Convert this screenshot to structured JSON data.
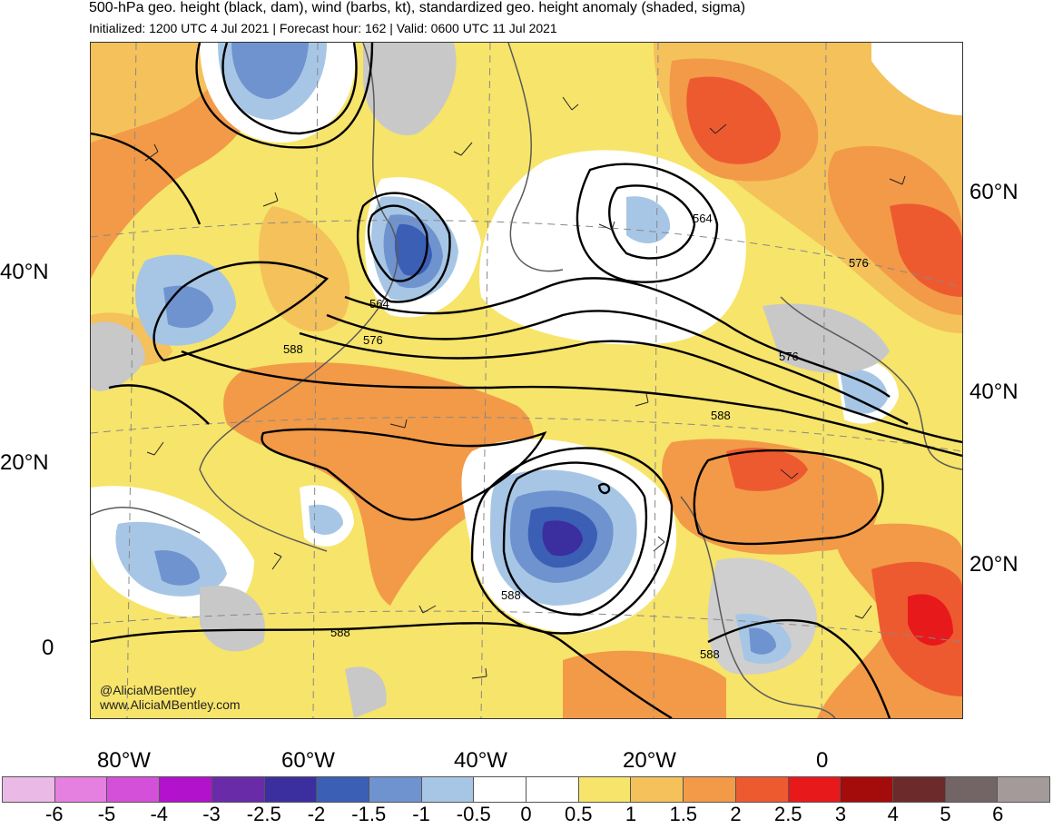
{
  "header": {
    "title": "500-hPa geo. height (black, dam), wind (barbs, kt), standardized geo. height anomaly (shaded, sigma)",
    "subtitle": "Initialized: 1200 UTC 4 Jul 2021 | Forecast hour: 162 | Valid: 0600 UTC 11 Jul 2021"
  },
  "map": {
    "left_lat_labels": [
      "40°N",
      "20°N",
      "0"
    ],
    "right_lat_labels": [
      "60°N",
      "40°N",
      "20°N"
    ],
    "lon_labels": [
      "80°W",
      "60°W",
      "40°W",
      "20°W",
      "0"
    ],
    "contour_labels": [
      "564",
      "576",
      "588",
      "564",
      "576",
      "576",
      "588",
      "588",
      "588",
      "588"
    ],
    "credit_handle": "@AliciaMBentley",
    "credit_site": "www.AliciaMBentley.com"
  },
  "colorbar": {
    "colors": [
      "#ebb9e6",
      "#e57fe0",
      "#d550d9",
      "#b212cc",
      "#6a2ba8",
      "#3b2fa0",
      "#3b5fb5",
      "#6f93cf",
      "#a7c6e5",
      "#ffffff",
      "#ffffff",
      "#f7e46a",
      "#f4c15a",
      "#f29a48",
      "#ee5a30",
      "#e8191b",
      "#a40b0b",
      "#6d2a2a",
      "#736565",
      "#a49a9a"
    ],
    "labels": [
      "-6",
      "-5",
      "-4",
      "-3",
      "-2.5",
      "-2",
      "-1.5",
      "-1",
      "-0.5",
      "0",
      "0.5",
      "1",
      "1.5",
      "2",
      "2.5",
      "3",
      "4",
      "5",
      "6"
    ]
  }
}
